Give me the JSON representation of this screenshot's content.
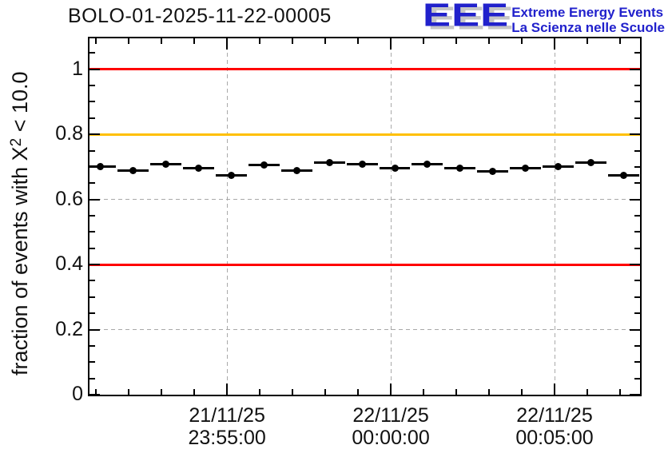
{
  "header": {
    "title": "BOLO-01-2025-11-22-00005",
    "logo": {
      "acronym": "EEE",
      "line1": "Extreme Energy Events",
      "line2": "La Scienza nelle Scuole",
      "text_color": "#2121cc",
      "shadow_color": "#c6c6c6"
    }
  },
  "chart_data": {
    "type": "scatter",
    "title": "BOLO-01-2025-11-22-00005",
    "ylabel": "fraction of events with X^2 < 10.0",
    "ylabel_parts": {
      "prefix": "fraction of events with X",
      "sup": "2",
      "suffix": " < 10.0"
    },
    "xlabel": "",
    "grid": true,
    "legend": "none",
    "ylim": [
      0,
      1.095
    ],
    "xlim_minutes": [
      -9.2,
      7.61
    ],
    "x_reference": "minutes relative to 22/11/25 00:00:00",
    "y_major_ticks": [
      {
        "v": 0,
        "label": "0"
      },
      {
        "v": 0.2,
        "label": "0.2"
      },
      {
        "v": 0.4,
        "label": "0.4"
      },
      {
        "v": 0.6,
        "label": "0.6"
      },
      {
        "v": 0.8,
        "label": "0.8"
      },
      {
        "v": 1,
        "label": "1"
      }
    ],
    "y_minor_step": 0.05,
    "x_major_ticks": [
      {
        "t_min": -5,
        "date": "21/11/25",
        "time": "23:55:00"
      },
      {
        "t_min": 0,
        "date": "22/11/25",
        "time": "00:00:00"
      },
      {
        "t_min": 5,
        "date": "22/11/25",
        "time": "00:05:00"
      }
    ],
    "x_minor_step_min": 1,
    "threshold_lines": [
      {
        "y": 1.0,
        "color": "#ff0000",
        "name": "upper-limit"
      },
      {
        "y": 0.8,
        "color": "#ffc000",
        "name": "warning-level"
      },
      {
        "y": 0.4,
        "color": "#ff0000",
        "name": "lower-limit"
      }
    ],
    "series": [
      {
        "name": "fraction-of-events-chi2-lt-10",
        "marker": "filled-circle",
        "color": "#000000",
        "x_error_min": 0.5,
        "points": [
          {
            "time": "23:51:07",
            "t_min": -8.88,
            "value": 0.702
          },
          {
            "time": "23:52:07",
            "t_min": -7.88,
            "value": 0.688
          },
          {
            "time": "23:53:07",
            "t_min": -6.88,
            "value": 0.709
          },
          {
            "time": "23:54:07",
            "t_min": -5.88,
            "value": 0.697
          },
          {
            "time": "23:55:07",
            "t_min": -4.88,
            "value": 0.675
          },
          {
            "time": "23:56:07",
            "t_min": -3.88,
            "value": 0.707
          },
          {
            "time": "23:57:07",
            "t_min": -2.88,
            "value": 0.688
          },
          {
            "time": "23:58:07",
            "t_min": -1.88,
            "value": 0.712
          },
          {
            "time": "23:59:07",
            "t_min": -0.88,
            "value": 0.709
          },
          {
            "time": "00:00:07",
            "t_min": 0.12,
            "value": 0.697
          },
          {
            "time": "00:01:07",
            "t_min": 1.12,
            "value": 0.709
          },
          {
            "time": "00:02:07",
            "t_min": 2.12,
            "value": 0.697
          },
          {
            "time": "00:03:07",
            "t_min": 3.12,
            "value": 0.687
          },
          {
            "time": "00:04:07",
            "t_min": 4.12,
            "value": 0.697
          },
          {
            "time": "00:05:07",
            "t_min": 5.12,
            "value": 0.702
          },
          {
            "time": "00:06:07",
            "t_min": 6.12,
            "value": 0.712
          },
          {
            "time": "00:07:07",
            "t_min": 7.12,
            "value": 0.675
          }
        ]
      }
    ]
  }
}
